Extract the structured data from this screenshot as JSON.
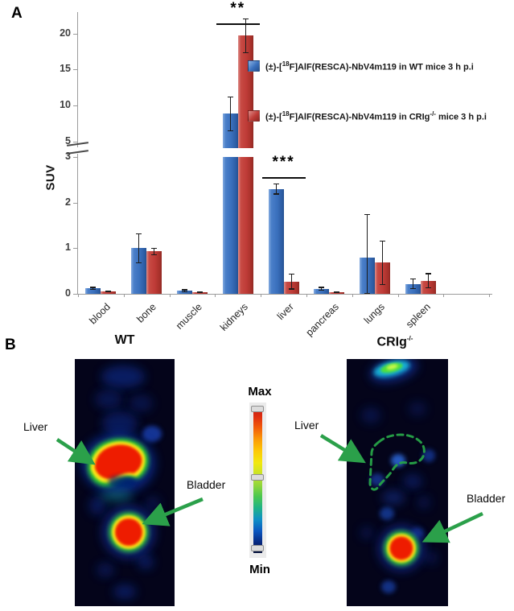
{
  "figure": {
    "panel_a_label": "A",
    "panel_b_label": "B"
  },
  "chart_data": {
    "type": "bar",
    "title": "",
    "ylabel": "SUV",
    "categories": [
      "blood",
      "bone",
      "muscle",
      "kidneys",
      "liver",
      "pancreas",
      "lungs",
      "spleen"
    ],
    "series": [
      {
        "name": "(±)-[18F]AlF(RESCA)-NbV4m119 in WT mice 3 h p.i",
        "color": "#3D79C6",
        "values": [
          0.12,
          1.0,
          0.07,
          8.9,
          2.3,
          0.11,
          0.8,
          0.22
        ],
        "errors": [
          0.03,
          0.33,
          0.03,
          2.4,
          0.12,
          0.04,
          0.95,
          0.11
        ]
      },
      {
        "name": "(±)-[18F]AlF(RESCA)-NbV4m119 in CRIg-/- mice 3 h p.i",
        "color": "#BF3B37",
        "values": [
          0.05,
          0.93,
          0.03,
          19.7,
          0.27,
          0.04,
          0.68,
          0.29
        ],
        "errors": [
          0.02,
          0.08,
          0.015,
          2.4,
          0.17,
          0.02,
          0.48,
          0.16
        ]
      }
    ],
    "axis_break": {
      "lower_ticks": [
        0,
        1,
        2,
        3
      ],
      "upper_ticks": [
        5,
        10,
        15,
        20
      ],
      "lower_range": [
        0,
        3
      ],
      "upper_range": [
        5,
        22
      ]
    },
    "significance": [
      {
        "category": "kidneys",
        "label": "**"
      },
      {
        "category": "liver",
        "label": "***"
      }
    ],
    "legend_position": "right"
  },
  "legend": {
    "items": [
      {
        "pre": "(±)-[",
        "iso": "18",
        "mid": "F]AlF(RESCA)-NbV4m119 in WT mice 3 h p.i",
        "sup": "",
        "post": ""
      },
      {
        "pre": "(±)-[",
        "iso": "18",
        "mid": "F]AlF(RESCA)-NbV4m119 in CRIg",
        "sup": "-/-",
        "post": " mice 3 h p.i"
      }
    ]
  },
  "panel_b": {
    "wt_title": "WT",
    "crig_title_base": "CRIg",
    "crig_title_sup": "-/-",
    "colorbar": {
      "max_label": "Max",
      "min_label": "Min"
    },
    "wt_annotations": {
      "liver": "Liver",
      "bladder": "Bladder"
    },
    "crig_annotations": {
      "liver": "Liver",
      "bladder": "Bladder"
    },
    "arrow_color": "#2BA04A"
  }
}
